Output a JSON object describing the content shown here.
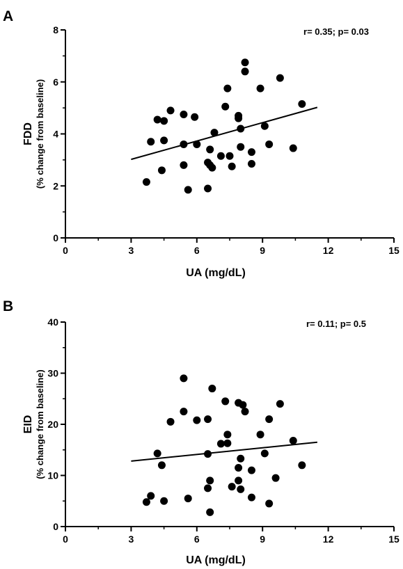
{
  "chart_data": [
    {
      "type": "scatter",
      "panel_label": "A",
      "annotation": "r= 0.35; p= 0.03",
      "xlabel": "UA (mg/dL)",
      "ylabel_main": "FDD",
      "ylabel_sub": "(% change from baseline)",
      "xlim": [
        0,
        15
      ],
      "ylim": [
        0,
        8
      ],
      "xticks": [
        0,
        3,
        6,
        9,
        12,
        15
      ],
      "yticks": [
        0,
        2,
        4,
        6,
        8
      ],
      "x_tick_labels": [
        "0",
        "3",
        "6",
        "9",
        "12",
        "15"
      ],
      "y_tick_labels": [
        "0",
        "2",
        "4",
        "6",
        "8"
      ],
      "points": [
        {
          "x": 3.7,
          "y": 2.15
        },
        {
          "x": 3.9,
          "y": 3.7
        },
        {
          "x": 4.2,
          "y": 4.55
        },
        {
          "x": 4.4,
          "y": 2.6
        },
        {
          "x": 4.5,
          "y": 3.75
        },
        {
          "x": 4.5,
          "y": 4.5
        },
        {
          "x": 4.8,
          "y": 4.9
        },
        {
          "x": 5.4,
          "y": 4.75
        },
        {
          "x": 5.4,
          "y": 3.6
        },
        {
          "x": 5.4,
          "y": 2.8
        },
        {
          "x": 5.6,
          "y": 1.85
        },
        {
          "x": 5.9,
          "y": 4.65
        },
        {
          "x": 6.0,
          "y": 3.6
        },
        {
          "x": 6.5,
          "y": 1.9
        },
        {
          "x": 6.5,
          "y": 2.9
        },
        {
          "x": 6.6,
          "y": 3.4
        },
        {
          "x": 6.6,
          "y": 2.8
        },
        {
          "x": 6.7,
          "y": 2.7
        },
        {
          "x": 6.8,
          "y": 4.05
        },
        {
          "x": 7.1,
          "y": 3.15
        },
        {
          "x": 7.3,
          "y": 5.05
        },
        {
          "x": 7.4,
          "y": 5.75
        },
        {
          "x": 7.5,
          "y": 3.15
        },
        {
          "x": 7.6,
          "y": 2.75
        },
        {
          "x": 7.9,
          "y": 4.6
        },
        {
          "x": 7.9,
          "y": 4.7
        },
        {
          "x": 8.0,
          "y": 4.2
        },
        {
          "x": 8.0,
          "y": 3.5
        },
        {
          "x": 8.2,
          "y": 6.4
        },
        {
          "x": 8.2,
          "y": 6.75
        },
        {
          "x": 8.5,
          "y": 3.3
        },
        {
          "x": 8.5,
          "y": 2.85
        },
        {
          "x": 8.9,
          "y": 5.75
        },
        {
          "x": 9.1,
          "y": 4.3
        },
        {
          "x": 9.3,
          "y": 3.6
        },
        {
          "x": 9.8,
          "y": 6.15
        },
        {
          "x": 10.4,
          "y": 3.45
        },
        {
          "x": 10.8,
          "y": 5.15
        }
      ],
      "fit_line": {
        "x": [
          3,
          11.5
        ],
        "y": [
          3.02,
          5.02
        ]
      }
    },
    {
      "type": "scatter",
      "panel_label": "B",
      "annotation": "r= 0.11; p= 0.5",
      "xlabel": "UA (mg/dL)",
      "ylabel_main": "EID",
      "ylabel_sub": "(% change from baseline)",
      "xlim": [
        0,
        15
      ],
      "ylim": [
        0,
        40
      ],
      "xticks": [
        0,
        3,
        6,
        9,
        12,
        15
      ],
      "yticks": [
        0,
        10,
        20,
        30,
        40
      ],
      "x_tick_labels": [
        "0",
        "3",
        "6",
        "9",
        "12",
        "15"
      ],
      "y_tick_labels": [
        "0",
        "10",
        "20",
        "30",
        "40"
      ],
      "points": [
        {
          "x": 3.7,
          "y": 4.8
        },
        {
          "x": 3.9,
          "y": 6.0
        },
        {
          "x": 4.2,
          "y": 14.3
        },
        {
          "x": 4.4,
          "y": 12.0
        },
        {
          "x": 4.5,
          "y": 5.0
        },
        {
          "x": 4.8,
          "y": 20.5
        },
        {
          "x": 5.4,
          "y": 29.0
        },
        {
          "x": 5.4,
          "y": 22.5
        },
        {
          "x": 5.6,
          "y": 5.5
        },
        {
          "x": 6.0,
          "y": 20.8
        },
        {
          "x": 6.5,
          "y": 21.0
        },
        {
          "x": 6.5,
          "y": 14.2
        },
        {
          "x": 6.5,
          "y": 7.5
        },
        {
          "x": 6.6,
          "y": 9.0
        },
        {
          "x": 6.6,
          "y": 2.8
        },
        {
          "x": 6.7,
          "y": 27.0
        },
        {
          "x": 7.1,
          "y": 16.2
        },
        {
          "x": 7.3,
          "y": 24.5
        },
        {
          "x": 7.4,
          "y": 18.0
        },
        {
          "x": 7.4,
          "y": 16.3
        },
        {
          "x": 7.6,
          "y": 7.8
        },
        {
          "x": 7.9,
          "y": 24.2
        },
        {
          "x": 7.9,
          "y": 11.5
        },
        {
          "x": 7.9,
          "y": 9.0
        },
        {
          "x": 8.0,
          "y": 13.3
        },
        {
          "x": 8.0,
          "y": 7.3
        },
        {
          "x": 8.1,
          "y": 23.8
        },
        {
          "x": 8.2,
          "y": 22.5
        },
        {
          "x": 8.5,
          "y": 11.0
        },
        {
          "x": 8.5,
          "y": 5.7
        },
        {
          "x": 8.9,
          "y": 18.0
        },
        {
          "x": 9.1,
          "y": 14.3
        },
        {
          "x": 9.3,
          "y": 21.0
        },
        {
          "x": 9.3,
          "y": 4.5
        },
        {
          "x": 9.6,
          "y": 9.5
        },
        {
          "x": 9.8,
          "y": 24.0
        },
        {
          "x": 10.4,
          "y": 16.8
        },
        {
          "x": 10.8,
          "y": 12.0
        }
      ],
      "fit_line": {
        "x": [
          3,
          11.5
        ],
        "y": [
          12.8,
          16.5
        ]
      }
    }
  ]
}
